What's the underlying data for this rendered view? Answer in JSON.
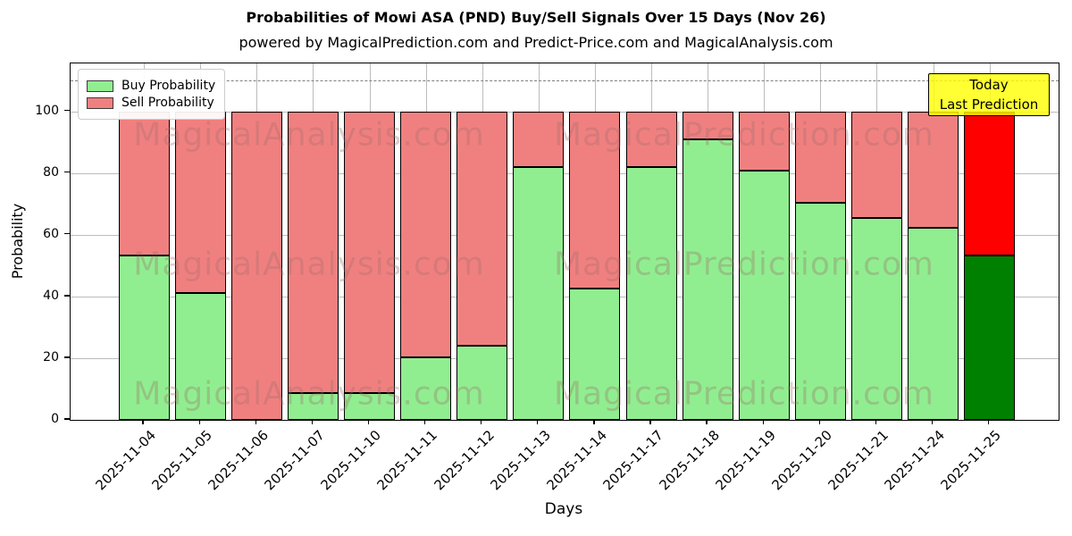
{
  "header": {
    "title": "Probabilities of Mowi ASA (PND) Buy/Sell Signals Over 15 Days (Nov 26)",
    "subtitle": "powered by MagicalPrediction.com and Predict-Price.com and MagicalAnalysis.com"
  },
  "legend": {
    "items": [
      {
        "label": "Buy Probability",
        "color": "#90ee90"
      },
      {
        "label": "Sell Probability",
        "color": "#f08080"
      }
    ]
  },
  "annotation_box": {
    "line1": "Today",
    "line2": "Last Prediction",
    "bg_color": "#ffff00"
  },
  "watermarks": {
    "left_text": "MagicalAnalysis.com",
    "right_text": "MagicalPrediction.com"
  },
  "chart_data": {
    "type": "bar",
    "stacked": true,
    "title": "Probabilities of Mowi ASA (PND) Buy/Sell Signals Over 15 Days (Nov 26)",
    "xlabel": "Days",
    "ylabel": "Probability",
    "ylim": [
      0,
      115.5
    ],
    "yticks": [
      0,
      20,
      40,
      60,
      80,
      100
    ],
    "grid": true,
    "dashed_guide_y": 110,
    "legend_position": "upper left",
    "categories": [
      "2025-11-04",
      "2025-11-05",
      "2025-11-06",
      "2025-11-07",
      "2025-11-10",
      "2025-11-11",
      "2025-11-12",
      "2025-11-13",
      "2025-11-14",
      "2025-11-17",
      "2025-11-18",
      "2025-11-19",
      "2025-11-20",
      "2025-11-21",
      "2025-11-24",
      "2025-11-25"
    ],
    "series": [
      {
        "name": "Buy Probability",
        "color": "#90ee90",
        "values": [
          53.3,
          41.2,
          0.0,
          8.7,
          8.7,
          20.3,
          24.0,
          82.0,
          42.5,
          82.0,
          91.0,
          80.7,
          70.3,
          65.5,
          62.1,
          53.3
        ]
      },
      {
        "name": "Sell Probability",
        "color": "#f08080",
        "values": [
          46.7,
          58.8,
          100.0,
          91.3,
          91.3,
          79.7,
          76.0,
          18.0,
          57.5,
          18.0,
          9.0,
          19.3,
          29.7,
          34.5,
          37.9,
          46.7
        ]
      }
    ],
    "highlight_last_bar": {
      "index": 15,
      "buy_color": "#008000",
      "sell_color": "#ff0000"
    }
  }
}
